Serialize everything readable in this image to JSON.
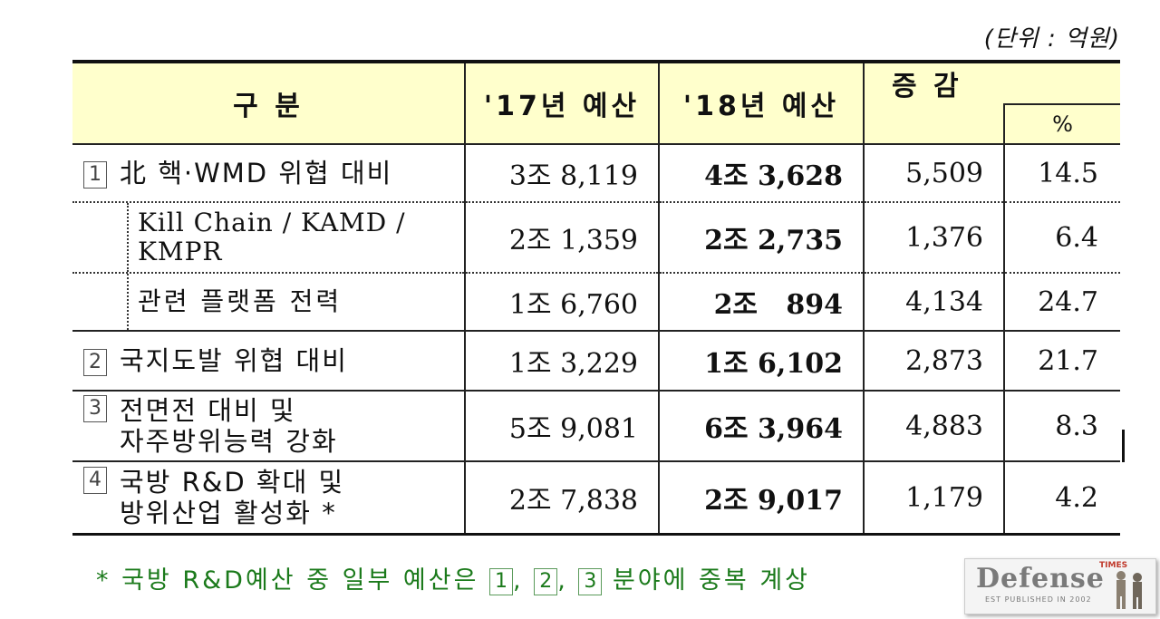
{
  "unit_label": "(단위 : 억원)",
  "header": {
    "category": "구 분",
    "budget_17": "'17년 예산",
    "budget_18": "'18년 예산",
    "change": "증 감",
    "percent": "%"
  },
  "rows": [
    {
      "num": "1",
      "label": "北 핵·WMD 위협 대비",
      "b17": "3조 8,119",
      "b18": "4조 3,628",
      "diff": "5,509",
      "pct": "14.5"
    },
    {
      "label1": "Kill Chain / KAMD /",
      "label2": "KMPR",
      "b17": "2조 1,359",
      "b18": "2조 2,735",
      "diff": "1,376",
      "pct": "6.4"
    },
    {
      "label": "관련 플랫폼 전력",
      "b17": "1조 6,760",
      "b18": "2조   894",
      "diff": "4,134",
      "pct": "24.7"
    },
    {
      "num": "2",
      "label": "국지도발 위협 대비",
      "b17": "1조 3,229",
      "b18": "1조 6,102",
      "diff": "2,873",
      "pct": "21.7"
    },
    {
      "num": "3",
      "label1": "전면전 대비 및",
      "label2": "자주방위능력 강화",
      "b17": "5조 9,081",
      "b18": "6조 3,964",
      "diff": "4,883",
      "pct": "8.3"
    },
    {
      "num": "4",
      "label1": "국방 R&D 확대 및",
      "label2": "방위산업 활성화 *",
      "b17": "2조 7,838",
      "b18": "2조 9,017",
      "diff": "1,179",
      "pct": "4.2"
    }
  ],
  "footnote": {
    "prefix": "* 국방 R&D예산 중 일부 예산은",
    "box1": "1",
    "box2": "2",
    "box3": "3",
    "suffix": "분야에 중복 계상"
  },
  "logo": {
    "word": "Defense",
    "times": "TIMES",
    "est": "EST PUBLISHED IN 2002"
  }
}
